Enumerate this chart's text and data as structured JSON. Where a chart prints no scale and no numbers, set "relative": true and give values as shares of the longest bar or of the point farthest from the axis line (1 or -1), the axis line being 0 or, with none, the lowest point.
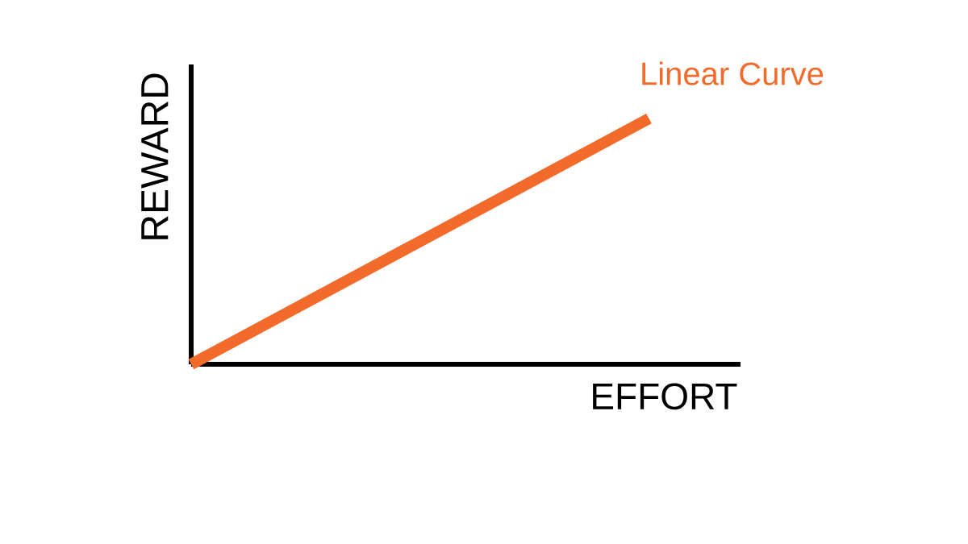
{
  "chart_data": {
    "type": "line",
    "relative": true,
    "xlabel": "EFFORT",
    "ylabel": "REWARD",
    "categories": [
      null,
      null
    ],
    "series": [
      {
        "name": "Linear Curve",
        "color": "#f26b2b",
        "values": [
          0,
          1
        ]
      }
    ],
    "marker": "none",
    "line_style": "solid"
  }
}
